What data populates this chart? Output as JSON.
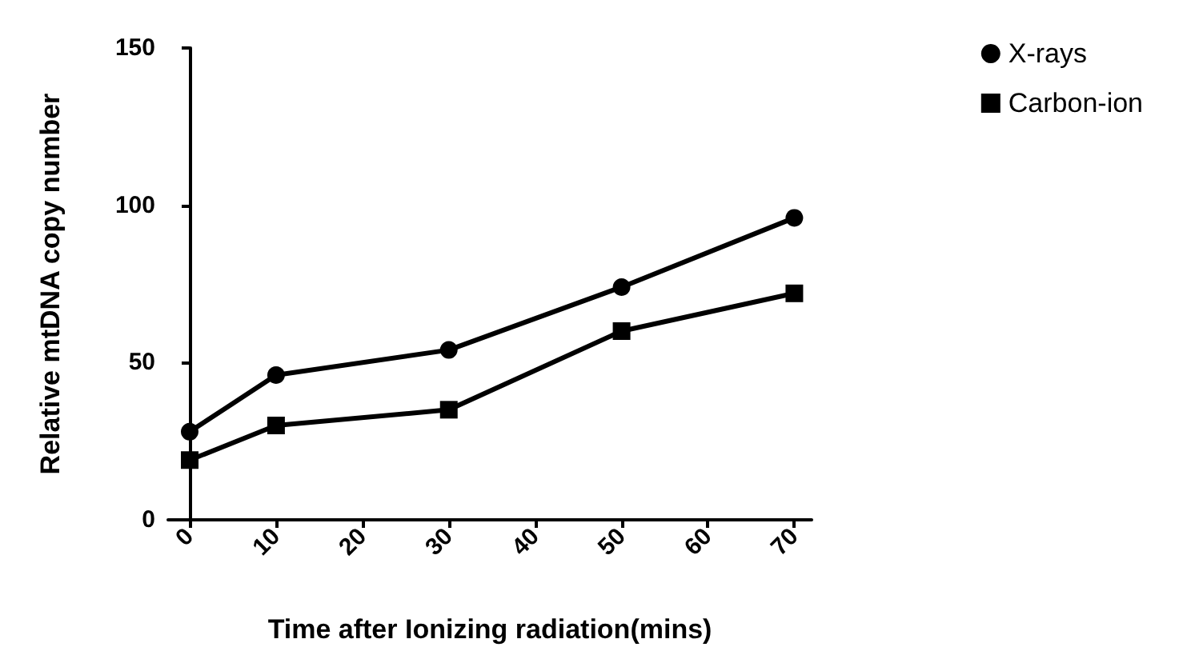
{
  "chart_data": {
    "type": "line",
    "xlabel": "Time after Ionizing radiation(mins)",
    "ylabel": "Relative mtDNA copy number",
    "x": [
      0,
      10,
      30,
      50,
      70
    ],
    "series": [
      {
        "name": "X-rays",
        "color": "#000000",
        "marker": "circle",
        "values": [
          28,
          46,
          54,
          74,
          96
        ]
      },
      {
        "name": "Carbon-ion",
        "color": "#000000",
        "marker": "square",
        "values": [
          19,
          30,
          35,
          60,
          72
        ]
      }
    ],
    "xlim": [
      -2.5,
      72
    ],
    "xticks": [
      0,
      10,
      20,
      30,
      40,
      50,
      60,
      70
    ],
    "ylim": [
      0,
      150
    ],
    "yticks": [
      0,
      50,
      100,
      150
    ],
    "grid": false,
    "legend": "top right",
    "line_style": "solid"
  }
}
